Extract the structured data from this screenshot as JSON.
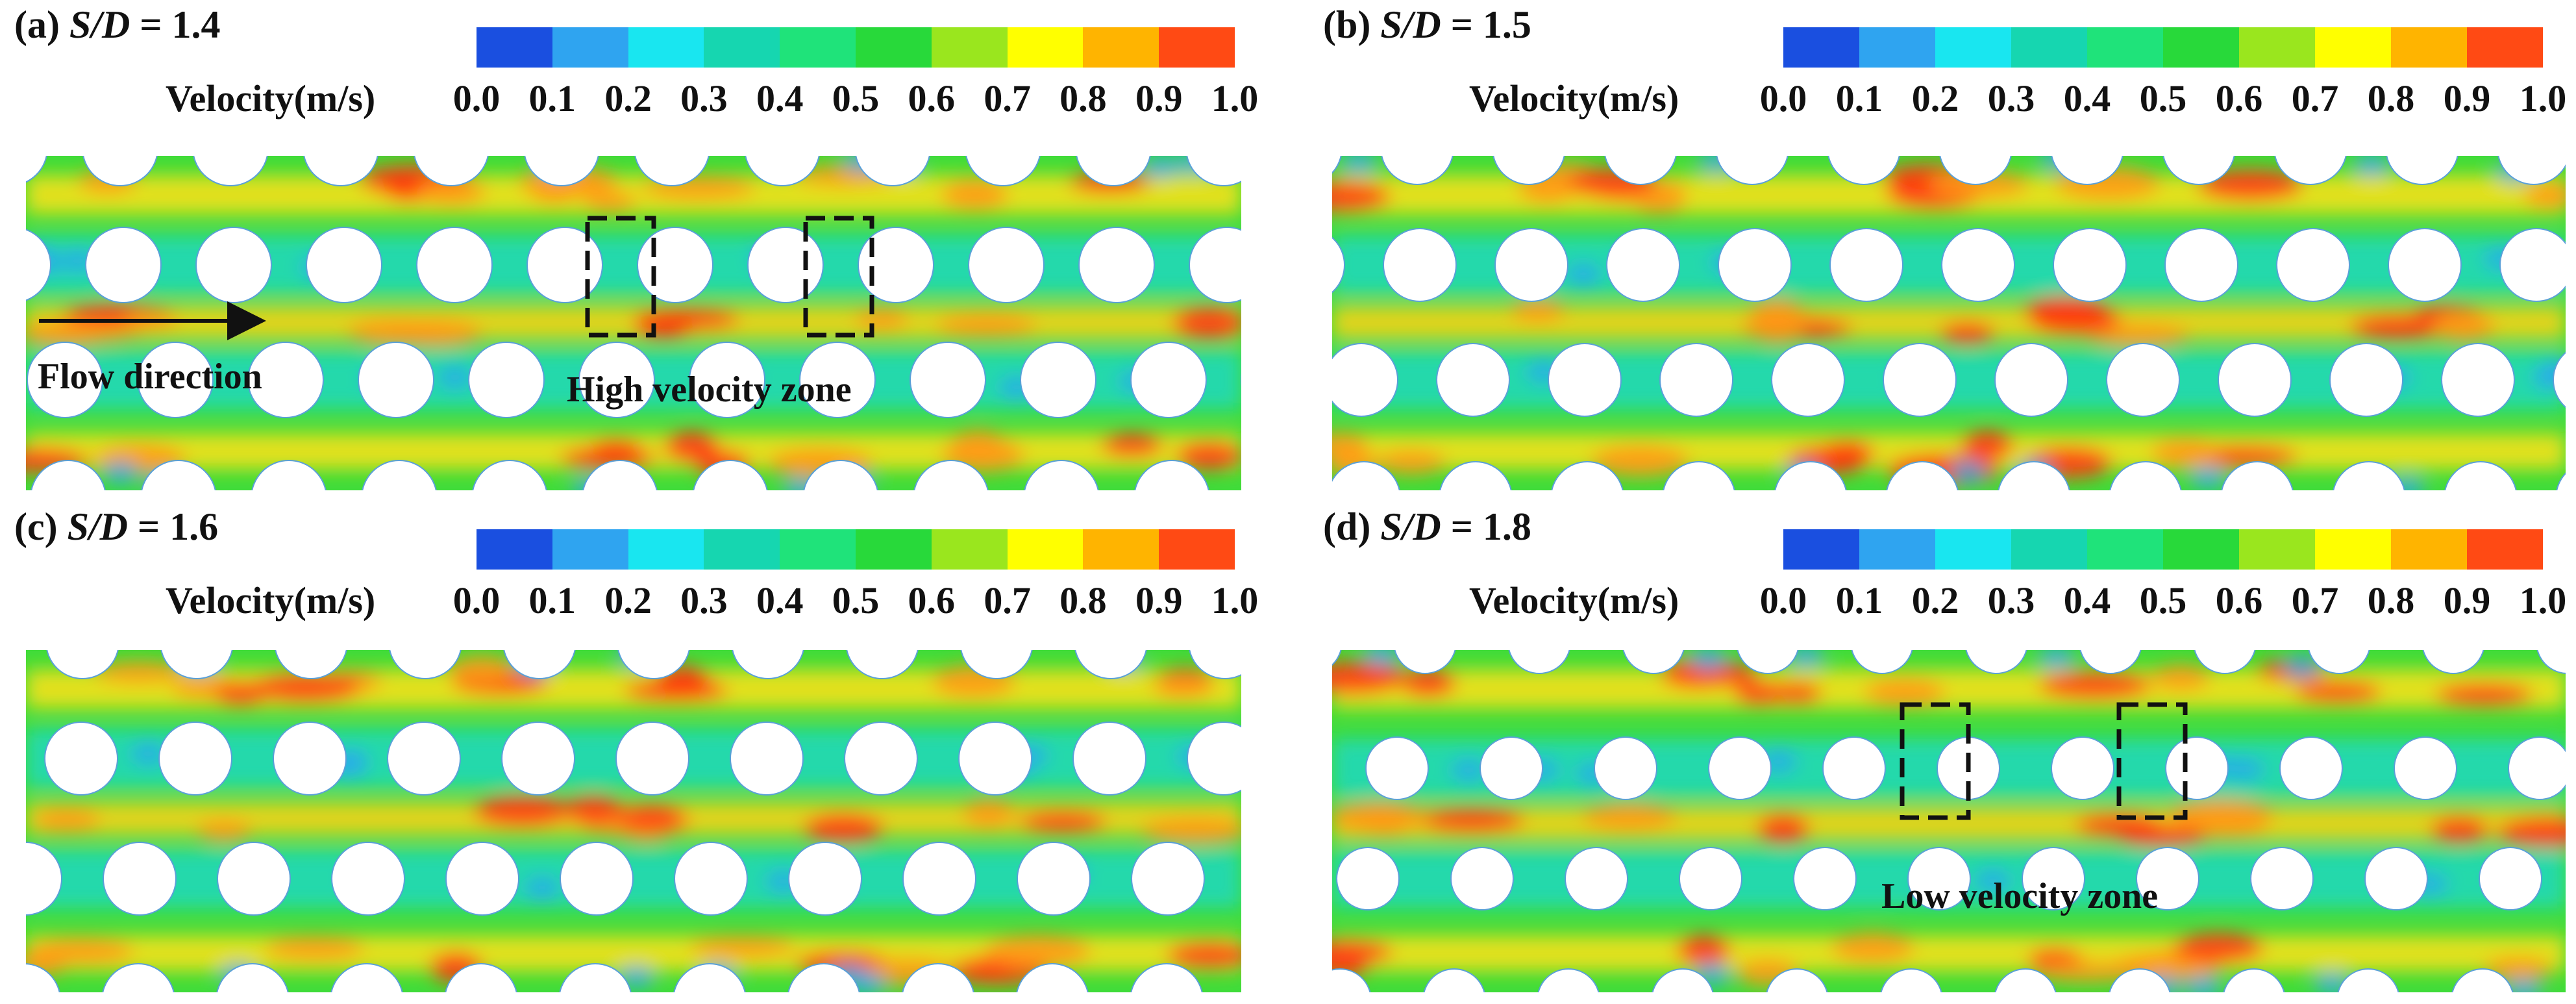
{
  "colorbar": {
    "label": "Velocity(m/s)",
    "ticks": [
      "0.0",
      "0.1",
      "0.2",
      "0.3",
      "0.4",
      "0.5",
      "0.6",
      "0.7",
      "0.8",
      "0.9",
      "1.0"
    ],
    "colors": [
      "#1a4fe0",
      "#2fa4f0",
      "#19e6f0",
      "#16d6b0",
      "#1fe37a",
      "#28d93a",
      "#9ae61e",
      "#ffff00",
      "#ffb400",
      "#ff4a14"
    ]
  },
  "panels": [
    {
      "id": "a",
      "tag": "(a) ",
      "label": "S/D",
      "value": " = 1.4",
      "annotations": {
        "flow": "Flow direction",
        "zone": "High velocity zone"
      }
    },
    {
      "id": "b",
      "tag": "(b) ",
      "label": "S/D",
      "value": " = 1.5",
      "annotations": {}
    },
    {
      "id": "c",
      "tag": "(c) ",
      "label": "S/D",
      "value": " = 1.6",
      "annotations": {}
    },
    {
      "id": "d",
      "tag": "(d) ",
      "label": "S/D",
      "value": " = 1.8",
      "annotations": {
        "zone": "Low velocity zone"
      }
    }
  ]
}
